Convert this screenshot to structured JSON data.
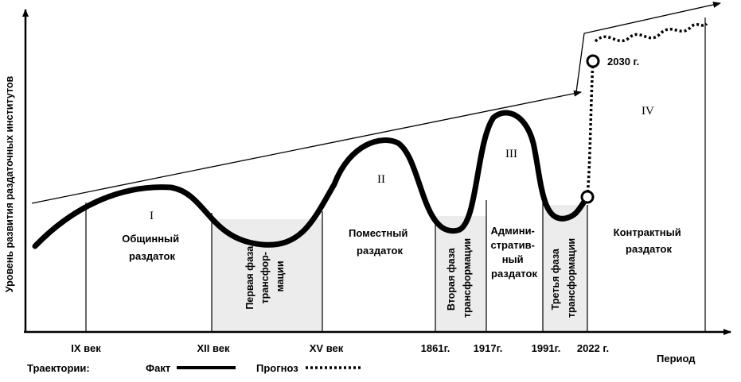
{
  "y_axis_label": "Уровень развития раздаточных институтов",
  "x_axis_label": "Период",
  "periods": [
    "IX век",
    "XII век",
    "XV век",
    "1861г.",
    "1917г.",
    "1991г.",
    "2022 г."
  ],
  "phases": {
    "I": "I",
    "II": "II",
    "III": "III",
    "IV": "IV",
    "obshchinny": [
      "Общинный",
      "раздаток"
    ],
    "pomestny": [
      "Поместный",
      "раздаток"
    ],
    "admin": [
      "Админи-",
      "стратив-",
      "ный",
      "раздаток"
    ],
    "kontraktny": [
      "Контрактный",
      "раздаток"
    ],
    "transform1": [
      "Первая фаза",
      "трансфор-",
      "мации"
    ],
    "transform2": [
      "Вторая фаза",
      "трансформации"
    ],
    "transform3": [
      "Третья фаза",
      "трансформации"
    ]
  },
  "forecast_point_label": "2030 г.",
  "legend": {
    "title": "Траектории:",
    "fact": "Факт",
    "forecast": "Прогноз"
  },
  "colors": {
    "line": "#000000",
    "shade": "#ececec",
    "background": "#ffffff"
  }
}
